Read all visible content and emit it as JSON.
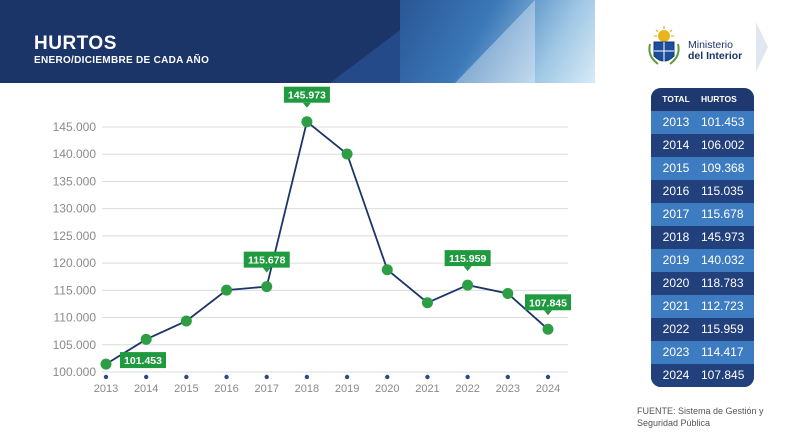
{
  "header": {
    "title": "HURTOS",
    "subtitle": "ENERO/DICIEMBRE DE CADA AÑO"
  },
  "logo": {
    "icon": "uruguay-coat-of-arms-icon",
    "line1": "Ministerio",
    "line2": "del Interior"
  },
  "table": {
    "col1": "TOTAL",
    "col2": "HURTOS",
    "rows": [
      {
        "year": "2013",
        "value": "101.453"
      },
      {
        "year": "2014",
        "value": "106.002"
      },
      {
        "year": "2015",
        "value": "109.368"
      },
      {
        "year": "2016",
        "value": "115.035"
      },
      {
        "year": "2017",
        "value": "115.678"
      },
      {
        "year": "2018",
        "value": "145.973"
      },
      {
        "year": "2019",
        "value": "140.032"
      },
      {
        "year": "2020",
        "value": "118.783"
      },
      {
        "year": "2021",
        "value": "112.723"
      },
      {
        "year": "2022",
        "value": "115.959"
      },
      {
        "year": "2023",
        "value": "114.417"
      },
      {
        "year": "2024",
        "value": "107.845"
      }
    ]
  },
  "source": "FUENTE: Sistema de Gestión y Seguridad Pública",
  "colors": {
    "navy": "#1b3568",
    "line": "#1b3568",
    "marker": "#2e9e44",
    "label_bg": "#1f9a3f",
    "axis_text": "#8a8a8a"
  },
  "chart_data": {
    "type": "line",
    "title": "HURTOS",
    "subtitle": "ENERO/DICIEMBRE DE CADA AÑO",
    "x": [
      "2013",
      "2014",
      "2015",
      "2016",
      "2017",
      "2018",
      "2019",
      "2020",
      "2021",
      "2022",
      "2023",
      "2024"
    ],
    "series": [
      {
        "values": [
          101453,
          106002,
          109368,
          115035,
          115678,
          145973,
          140032,
          118783,
          112723,
          115959,
          114417,
          107845
        ]
      }
    ],
    "ylim": [
      100000,
      145000
    ],
    "yticks": [
      100000,
      105000,
      110000,
      115000,
      120000,
      125000,
      130000,
      135000,
      140000,
      145000
    ],
    "ytick_labels": [
      "100.000",
      "105.000",
      "110.000",
      "115.000",
      "120.000",
      "125.000",
      "130.000",
      "135.000",
      "140.000",
      "145.000"
    ],
    "xlabel": "",
    "ylabel": "",
    "grid": true,
    "legend": "none",
    "annotations": [
      {
        "x": "2013",
        "text": "101.453",
        "position": "below-right"
      },
      {
        "x": "2017",
        "text": "115.678",
        "position": "above"
      },
      {
        "x": "2018",
        "text": "145.973",
        "position": "above"
      },
      {
        "x": "2022",
        "text": "115.959",
        "position": "above"
      },
      {
        "x": "2024",
        "text": "107.845",
        "position": "above"
      }
    ]
  }
}
